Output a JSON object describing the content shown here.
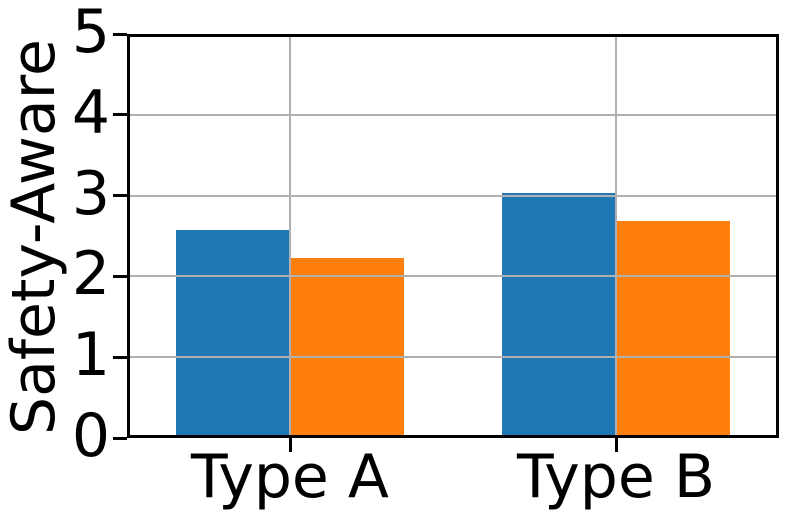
{
  "chart_data": {
    "type": "bar",
    "title": "",
    "ylabel": "Safety-Aware",
    "xlabel": "",
    "categories": [
      "Type A",
      "Type B"
    ],
    "series": [
      {
        "color": "#1f77b4",
        "values": [
          2.57,
          3.03
        ]
      },
      {
        "color": "#ff7f0e",
        "values": [
          2.23,
          2.68
        ]
      }
    ],
    "ylim": [
      0,
      5
    ],
    "yticks": [
      0,
      1,
      2,
      3,
      4,
      5
    ],
    "grid": true,
    "grid_color": "#b0b0b0",
    "spine_color": "#000000",
    "text_color": "#000000",
    "background_color": "#ffffff",
    "legend": "none",
    "bar_width_fraction": 0.35
  }
}
